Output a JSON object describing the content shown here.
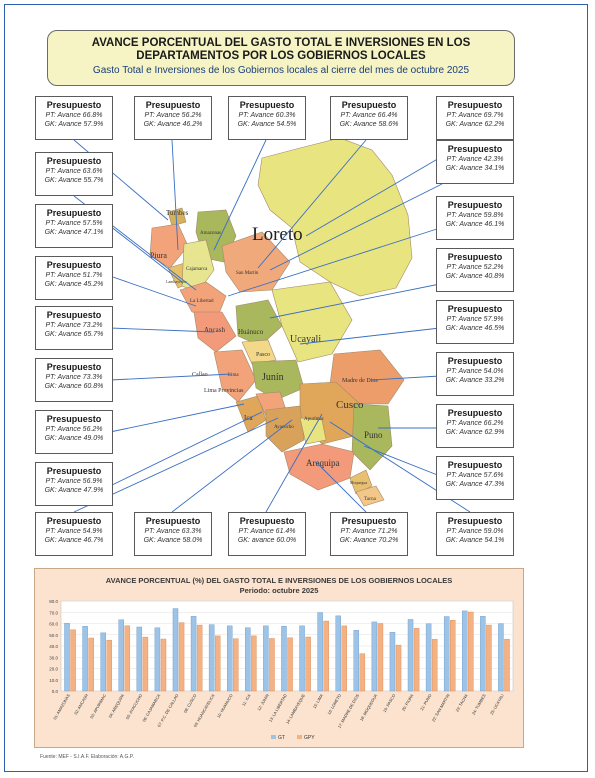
{
  "header": {
    "title": "AVANCE PORCENTUAL DEL GASTO TOTAL E INVERSIONES EN LOS DEPARTAMENTOS POR LOS GOBIERNOS LOCALES",
    "subtitle": "Gasto Total e Inversiones de los Gobiernos locales al cierre del mes de octubre 2025"
  },
  "map_labels": {
    "loreto": "Loreto",
    "tumbes": "Tumbes",
    "piura": "Piura",
    "amazonas": "Amazonas",
    "cajamarca": "Cajamarca",
    "la_libertad": "La Libertad",
    "lambayeque": "Lambayeque",
    "san_martin": "San Martín",
    "ancash": "Ancash",
    "huanuco": "Huánuco",
    "ucayali": "Ucayali",
    "pasco": "Pasco",
    "junin": "Junín",
    "lima": "Lima",
    "callao": "Callao",
    "lima_provincias": "Lima Provincias",
    "madre_de_dios": "Madre de Dios",
    "cusco": "Cusco",
    "puno": "Puno",
    "ica": "Ica",
    "ayacucho": "Ayacucho",
    "apurimac": "Apurímac",
    "arequipa": "Arequipa",
    "moquegua": "Moquegua",
    "tacna": "Tacna"
  },
  "boxes": [
    {
      "h": "Presupuesto",
      "pt": "PT: Avance 66.8%",
      "gk": "GK: Avance 57.9%"
    },
    {
      "h": "Presupuesto",
      "pt": "PT: Avance 56.2%",
      "gk": "GK: Avance 46.2%"
    },
    {
      "h": "Presupuesto",
      "pt": "PT: Avance 60.3%",
      "gk": "GK: Avance 54.5%"
    },
    {
      "h": "Presupuesto",
      "pt": "PT: Avance 66.4%",
      "gk": "GK: Avance 58.6%"
    },
    {
      "h": "Presupuesto",
      "pt": "PT: Avance 69.7%",
      "gk": "GK: Avance 62.2%"
    },
    {
      "h": "Presupuesto",
      "pt": "PT: Avance 63.6%",
      "gk": "GK: Avance 55.7%"
    },
    {
      "h": "Presupuesto",
      "pt": "PT: Avance 42.3%",
      "gk": "GK: Avance 34.1%"
    },
    {
      "h": "Presupuesto",
      "pt": "PT: Avance 57.5%",
      "gk": "GK: Avance 47.1%"
    },
    {
      "h": "Presupuesto",
      "pt": "PT: Avance 59.8%",
      "gk": "GK: Avance 46.1%"
    },
    {
      "h": "Presupuesto",
      "pt": "PT: Avance 51.7%",
      "gk": "GK: Avance 45.2%"
    },
    {
      "h": "Presupuesto",
      "pt": "PT: Avance 52.2%",
      "gk": "GK: Avance 40.8%"
    },
    {
      "h": "Presupuesto",
      "pt": "PT: Avance 73.2%",
      "gk": "GK: Avance 65.7%"
    },
    {
      "h": "Presupuesto",
      "pt": "PT: Avance 57.9%",
      "gk": "GK: Avance 46.5%"
    },
    {
      "h": "Presupuesto",
      "pt": "PT: Avance 73.3%",
      "gk": "GK: Avance 60.8%"
    },
    {
      "h": "Presupuesto",
      "pt": "PT: Avance 54.0%",
      "gk": "GK: Avance 33.2%"
    },
    {
      "h": "Presupuesto",
      "pt": "PT: Avance 56.2%",
      "gk": "GK: Avance 49.0%"
    },
    {
      "h": "Presupuesto",
      "pt": "PT: Avance 66.2%",
      "gk": "GK: Avance 62.9%"
    },
    {
      "h": "Presupuesto",
      "pt": "PT: Avance 56.9%",
      "gk": "GK: Avance 47.9%"
    },
    {
      "h": "Presupuesto",
      "pt": "PT: Avance 57.6%",
      "gk": "GK: Avance 47.3%"
    },
    {
      "h": "Presupuesto",
      "pt": "PT: Avance 54.9%",
      "gk": "GK: Avance 46.7%"
    },
    {
      "h": "Presupuesto",
      "pt": "PT: Avance 63.3%",
      "gk": "GK: Avance 58.0%"
    },
    {
      "h": "Presupuesto",
      "pt": "PT: Avance 61.4%",
      "gk": "GK: avance 60.0%"
    },
    {
      "h": "Presupuesto",
      "pt": "PT: Avance 71.2%",
      "gk": "GK: Avance 70.2%"
    },
    {
      "h": "Presupuesto",
      "pt": "PT: Avance 59.0%",
      "gk": "GK: Avance 54.1%"
    }
  ],
  "source": "Fuente: MEF - S.I.A.F. Elaboración: A.G.P.",
  "colors": {
    "pt": "#9dc3e6",
    "gk": "#f4b183"
  },
  "chart_data": {
    "type": "bar",
    "title": "AVANCE PORCENTUAL (%) DEL GASTO TOTAL E INVERSIONES DE LOS GOBIERNOS LOCALES",
    "subtitle": "Periodo: octubre 2025",
    "ylim": [
      0,
      80
    ],
    "yticks": [
      "0.0",
      "10.0",
      "20.0",
      "30.0",
      "40.0",
      "50.0",
      "60.0",
      "70.0",
      "80.0"
    ],
    "categories": [
      "01: AMAZONAS",
      "02: ANCASH",
      "03: APURIMAC",
      "04: AREQUIPA",
      "05: AYACUCHO",
      "06: CAJAMARCA",
      "07: P.C. DE CALLAO",
      "08: CUSCO",
      "09: HUANCAVELICA",
      "10: HUANUCO",
      "11: ICA",
      "12: JUNIN",
      "13: LA LIBERTAD",
      "14: LAMBAYEQUE",
      "15: LIMA",
      "16: LORETO",
      "17: MADRE DE DIOS",
      "18: MOQUEGUA",
      "19: PASCO",
      "20: PIURA",
      "21: PUNO",
      "22: SAN MARTIN",
      "23: TACNA",
      "24: TUMBES",
      "25: UCAYALI"
    ],
    "series": [
      {
        "name": "GT",
        "values": [
          60.3,
          57.5,
          51.7,
          63.3,
          56.9,
          56.2,
          73.3,
          66.4,
          59.0,
          57.9,
          56.2,
          57.9,
          57.6,
          57.9,
          69.7,
          66.8,
          54.0,
          61.4,
          52.2,
          63.6,
          59.8,
          66.2,
          71.2,
          66.4,
          59.9
        ]
      },
      {
        "name": "GPY",
        "values": [
          54.5,
          47.1,
          45.2,
          58.0,
          47.9,
          46.2,
          60.8,
          58.6,
          49.0,
          46.5,
          49.0,
          46.7,
          47.3,
          48.0,
          62.2,
          57.9,
          33.2,
          60.0,
          40.8,
          55.7,
          46.1,
          62.9,
          70.2,
          58.6,
          46.1
        ]
      }
    ],
    "legend": [
      "GT",
      "GPY"
    ],
    "legend_position": "bottom"
  }
}
